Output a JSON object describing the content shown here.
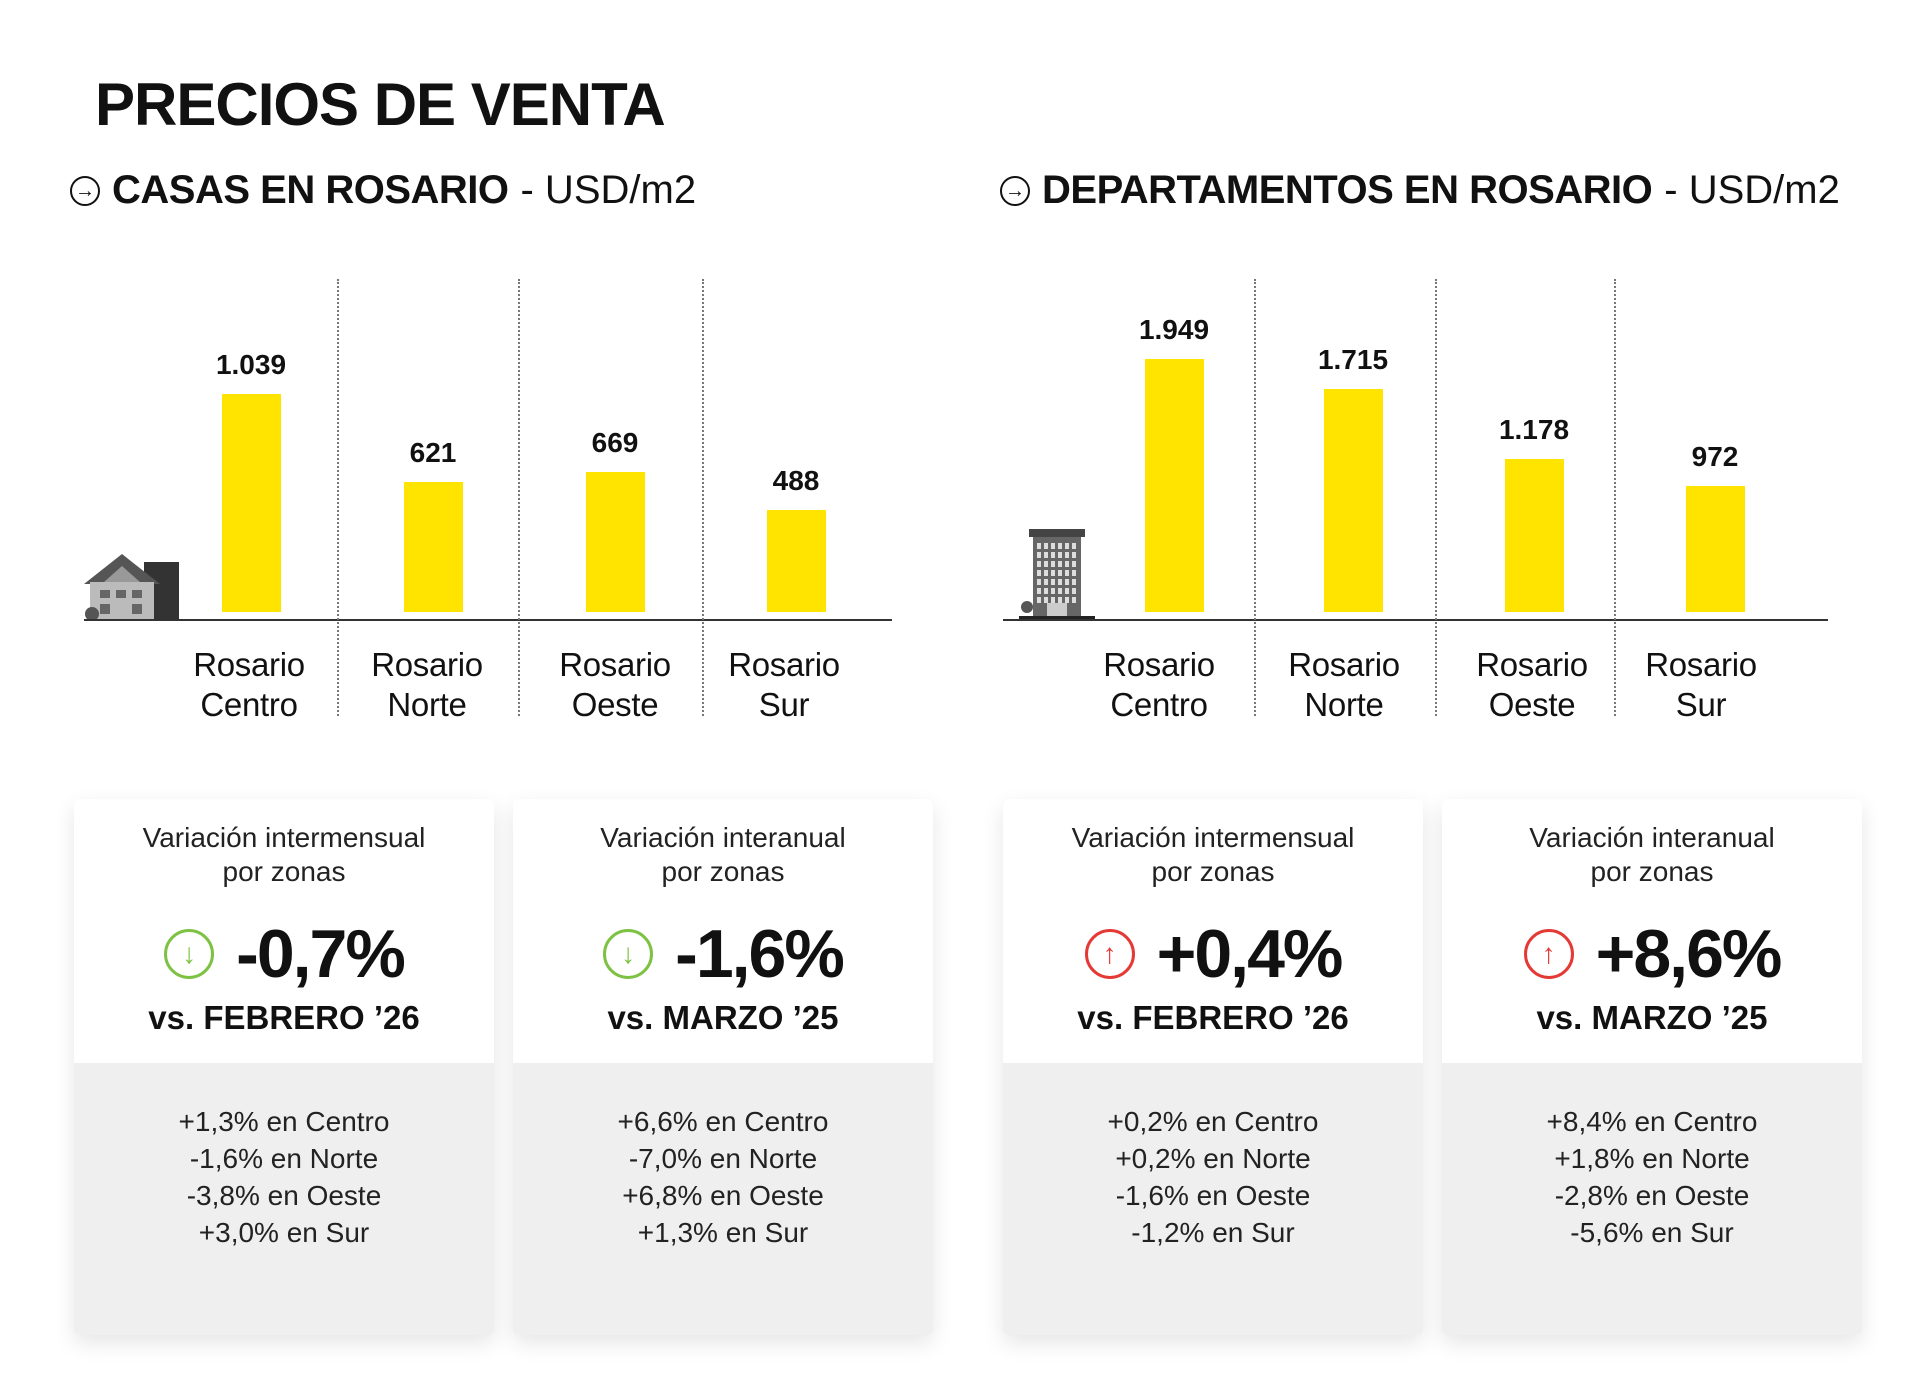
{
  "title": "PRECIOS DE VENTA",
  "colors": {
    "bar": "#FFE400",
    "down": "#7DC243",
    "up": "#E53935"
  },
  "chart_data": [
    {
      "type": "bar",
      "title": "CASAS EN ROSARIO",
      "unit": "- USD/m2",
      "icon": "house-icon",
      "categories": [
        [
          "Rosario",
          "Centro"
        ],
        [
          "Rosario",
          "Norte"
        ],
        [
          "Rosario",
          "Oeste"
        ],
        [
          "Rosario",
          "Sur"
        ]
      ],
      "values": [
        1039,
        621,
        669,
        488
      ],
      "value_labels": [
        "1.039",
        "621",
        "669",
        "488"
      ]
    },
    {
      "type": "bar",
      "title": "DEPARTAMENTOS EN ROSARIO",
      "unit": "- USD/m2",
      "icon": "building-icon",
      "categories": [
        [
          "Rosario",
          "Centro"
        ],
        [
          "Rosario",
          "Norte"
        ],
        [
          "Rosario",
          "Oeste"
        ],
        [
          "Rosario",
          "Sur"
        ]
      ],
      "values": [
        1949,
        1715,
        1178,
        972
      ],
      "value_labels": [
        "1.949",
        "1.715",
        "1.178",
        "972"
      ]
    }
  ],
  "cards": [
    {
      "title": [
        "Variación intermensual",
        "por zonas"
      ],
      "direction": "down",
      "value": "-0,7%",
      "vs": "vs. FEBRERO ’26",
      "lines": [
        "+1,3% en Centro",
        "-1,6% en Norte",
        "-3,8% en Oeste",
        "+3,0% en Sur"
      ]
    },
    {
      "title": [
        "Variación interanual",
        "por zonas"
      ],
      "direction": "down",
      "value": "-1,6%",
      "vs": "vs. MARZO ’25",
      "lines": [
        "+6,6% en Centro",
        "-7,0% en Norte",
        "+6,8% en Oeste",
        "+1,3% en Sur"
      ]
    },
    {
      "title": [
        "Variación intermensual",
        "por zonas"
      ],
      "direction": "up",
      "value": "+0,4%",
      "vs": "vs. FEBRERO ’26",
      "lines": [
        "+0,2% en Centro",
        "+0,2% en Norte",
        "-1,6% en Oeste",
        "-1,2% en Sur"
      ]
    },
    {
      "title": [
        "Variación interanual",
        "por zonas"
      ],
      "direction": "up",
      "value": "+8,6%",
      "vs": "vs. MARZO ’25",
      "lines": [
        "+8,4% en Centro",
        "+1,8%  en Norte",
        "-2,8% en Oeste",
        "-5,6% en Sur"
      ]
    }
  ]
}
